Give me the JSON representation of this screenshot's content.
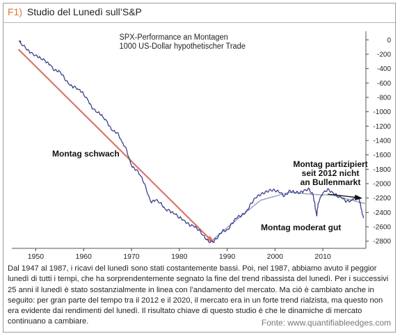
{
  "header": {
    "fig": "F1)",
    "title": "Studio del Lunedì sull’S&P"
  },
  "chart_data": {
    "type": "line",
    "title_lines": [
      "SPX-Performance an Montagen",
      "1000 US-Dollar hypothetischer Trade"
    ],
    "xlim": [
      1945,
      2019
    ],
    "ylim": [
      -2900,
      80
    ],
    "xticks": [
      1950,
      1960,
      1970,
      1980,
      1990,
      2000,
      2010
    ],
    "yticks": [
      0,
      -200,
      -400,
      -600,
      -800,
      -1000,
      -1200,
      -1400,
      -1600,
      -1800,
      -2000,
      -2200,
      -2400,
      -2600,
      -2800
    ],
    "grid": false,
    "series": [
      {
        "values": [
          [
            1946.5,
            -10
          ],
          [
            1947,
            -60
          ],
          [
            1948,
            -130
          ],
          [
            1949,
            -175
          ],
          [
            1950,
            -210
          ],
          [
            1951,
            -260
          ],
          [
            1952,
            -300
          ],
          [
            1953,
            -345
          ],
          [
            1954,
            -420
          ],
          [
            1955,
            -440
          ],
          [
            1956,
            -540
          ],
          [
            1957,
            -620
          ],
          [
            1958,
            -650
          ],
          [
            1959,
            -690
          ],
          [
            1960,
            -760
          ],
          [
            1961,
            -850
          ],
          [
            1962,
            -960
          ],
          [
            1963,
            -1010
          ],
          [
            1964,
            -1070
          ],
          [
            1965,
            -1150
          ],
          [
            1966,
            -1260
          ],
          [
            1967,
            -1290
          ],
          [
            1968,
            -1420
          ],
          [
            1969,
            -1530
          ],
          [
            1970,
            -1750
          ],
          [
            1971,
            -1810
          ],
          [
            1972,
            -1900
          ],
          [
            1973,
            -2050
          ],
          [
            1974,
            -2250
          ],
          [
            1975,
            -2230
          ],
          [
            1976,
            -2270
          ],
          [
            1977,
            -2350
          ],
          [
            1978,
            -2370
          ],
          [
            1979,
            -2420
          ],
          [
            1980,
            -2480
          ],
          [
            1981,
            -2510
          ],
          [
            1982,
            -2560
          ],
          [
            1983,
            -2590
          ],
          [
            1984,
            -2650
          ],
          [
            1985,
            -2720
          ],
          [
            1986,
            -2790
          ],
          [
            1987,
            -2810
          ],
          [
            1988,
            -2760
          ],
          [
            1989,
            -2660
          ],
          [
            1990,
            -2640
          ],
          [
            1991,
            -2550
          ],
          [
            1992,
            -2480
          ],
          [
            1993,
            -2450
          ],
          [
            1994,
            -2380
          ],
          [
            1995,
            -2270
          ],
          [
            1996,
            -2200
          ],
          [
            1997,
            -2160
          ],
          [
            1998,
            -2110
          ],
          [
            1999,
            -2080
          ],
          [
            2000,
            -2100
          ],
          [
            2001,
            -2130
          ],
          [
            2002,
            -2170
          ],
          [
            2003,
            -2090
          ],
          [
            2004,
            -2120
          ],
          [
            2005,
            -2140
          ],
          [
            2006,
            -2100
          ],
          [
            2007,
            -2060
          ],
          [
            2008,
            -2160
          ],
          [
            2008.7,
            -2450
          ],
          [
            2009,
            -2280
          ],
          [
            2010,
            -2130
          ],
          [
            2011,
            -2070
          ],
          [
            2012,
            -2120
          ],
          [
            2013,
            -2180
          ],
          [
            2014,
            -2200
          ],
          [
            2015,
            -2240
          ],
          [
            2016,
            -2230
          ],
          [
            2017,
            -2180
          ],
          [
            2017.6,
            -2200
          ],
          [
            2018,
            -2350
          ],
          [
            2018.5,
            -2480
          ]
        ]
      }
    ],
    "trend_lines": [
      {
        "name": "montag-schwach-trend",
        "points": [
          [
            1946.5,
            -140
          ],
          [
            1987,
            -2810
          ]
        ]
      },
      {
        "name": "montag-moderat-gut-trend",
        "points": [
          [
            1987,
            -2780
          ],
          [
            1992,
            -2500
          ],
          [
            1997,
            -2230
          ],
          [
            2003,
            -2120
          ],
          [
            2008,
            -2150
          ],
          [
            2012,
            -2160
          ],
          [
            2016,
            -2230
          ],
          [
            2019,
            -2280
          ]
        ]
      }
    ],
    "annotations": [
      {
        "text": "Montag schwach"
      },
      {
        "text": "Montag moderat gut"
      },
      {
        "lines": [
          "Montag partizipiert",
          "seit 2012 nicht",
          "an Bullenmarkt"
        ]
      }
    ],
    "colors": {
      "series": "#3b3f8c",
      "trend_down": "#d9776a",
      "trend_up": "#9aa6c2",
      "arrow": "#111111"
    }
  },
  "caption": "Dal 1947 al 1987, i ricavi del lunedì sono stati costantemente bassi. Poi, nel 1987, abbiamo avuto il peggior lunedì di tutti i tempi, che ha sorprendentemente segnato la fine del trend ribassista del lunedì. Per i successivi 25 anni il lunedì è stato sostanzialmente in linea con l’andamento del mercato. Ma ciò è cambiato anche in seguito: per gran parte del tempo tra il 2012 e il 2020, il mercato era in un forte trend rialzista, ma questo non era evidente dai rendimenti del lunedì. Il risultato chiave di questo studio è che le dinamiche di mercato continuano a cambiare.",
  "source": "Fonte: www.quantifiableedges.com"
}
